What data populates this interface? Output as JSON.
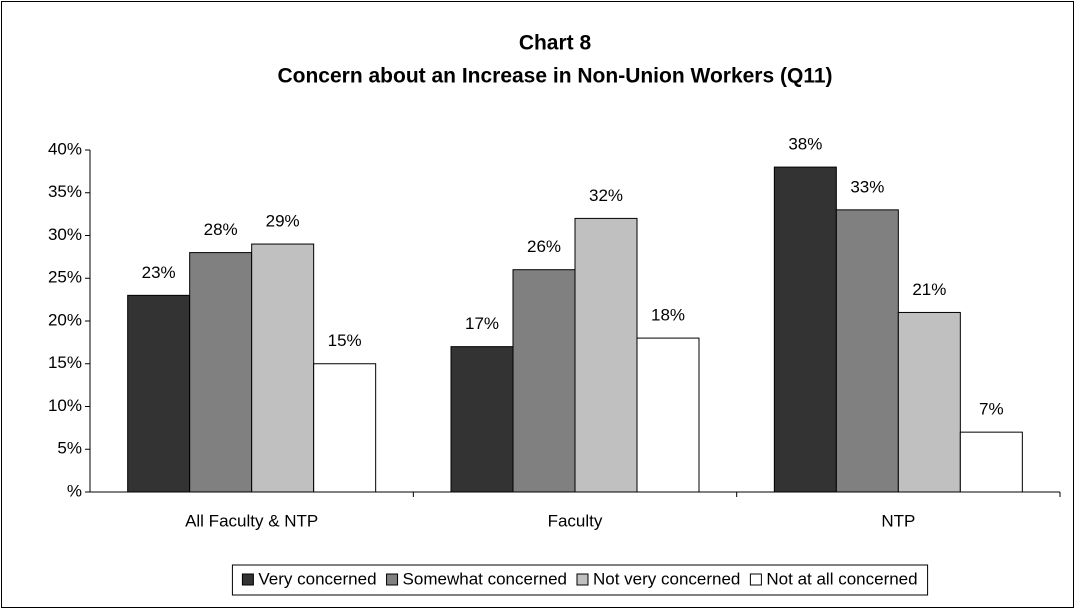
{
  "chart_data": {
    "type": "bar",
    "title": "Chart 8",
    "subtitle": "Concern about an Increase in Non-Union Workers (Q11)",
    "categories": [
      "All Faculty & NTP",
      "Faculty",
      "NTP"
    ],
    "series": [
      {
        "name": "Very concerned",
        "color": "#333333",
        "values": [
          23,
          17,
          38
        ],
        "value_labels": [
          "23%",
          "17%",
          "38%"
        ]
      },
      {
        "name": "Somewhat concerned",
        "color": "#808080",
        "values": [
          28,
          26,
          33
        ],
        "value_labels": [
          "28%",
          "26%",
          "33%"
        ]
      },
      {
        "name": "Not very concerned",
        "color": "#c0c0c0",
        "values": [
          29,
          32,
          21
        ],
        "value_labels": [
          "29%",
          "32%",
          "21%"
        ]
      },
      {
        "name": "Not at all concerned",
        "color": "#ffffff",
        "values": [
          15,
          18,
          7
        ],
        "value_labels": [
          "15%",
          "18%",
          "7%"
        ]
      }
    ],
    "ylim": [
      0,
      40
    ],
    "yticks": [
      {
        "value": 0,
        "label": "%"
      },
      {
        "value": 5,
        "label": "5%"
      },
      {
        "value": 10,
        "label": "10%"
      },
      {
        "value": 15,
        "label": "15%"
      },
      {
        "value": 20,
        "label": "20%"
      },
      {
        "value": 25,
        "label": "25%"
      },
      {
        "value": 30,
        "label": "30%"
      },
      {
        "value": 35,
        "label": "35%"
      },
      {
        "value": 40,
        "label": "40%"
      }
    ],
    "legend": "bottom"
  }
}
